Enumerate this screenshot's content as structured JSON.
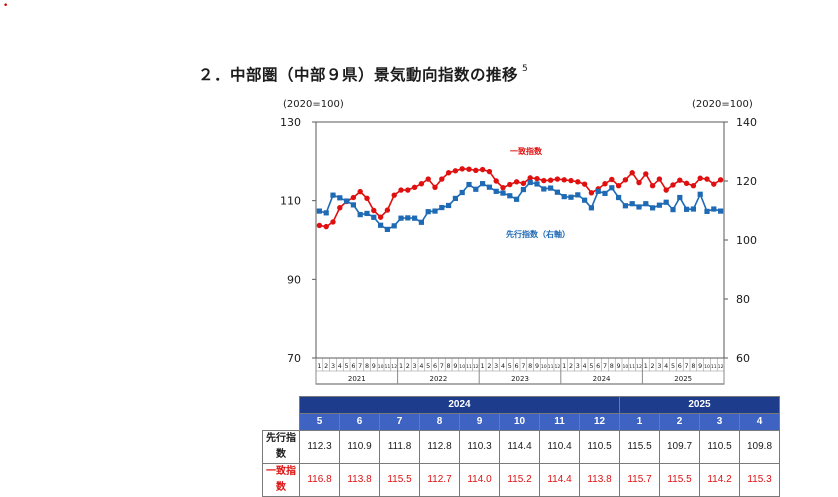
{
  "page": {
    "corner_mark": "•",
    "title": "２．中部圏（中部９県）景気動向指数の推移",
    "title_note": "5"
  },
  "chart_data": {
    "type": "line",
    "left_axis": {
      "unit_label": "(2020=100)",
      "ylim": [
        70,
        130
      ],
      "ticks": [
        "70",
        "90",
        "110",
        "130"
      ]
    },
    "right_axis": {
      "unit_label": "(2020=100)",
      "ylim": [
        60,
        140
      ],
      "ticks": [
        "60",
        "80",
        "100",
        "120",
        "140"
      ]
    },
    "x_months": [
      "1",
      "2",
      "3",
      "4",
      "5",
      "6",
      "7",
      "8",
      "9",
      "10",
      "11",
      "12",
      "1",
      "2",
      "3",
      "4",
      "5",
      "6",
      "7",
      "8",
      "9",
      "10",
      "11",
      "12",
      "1",
      "2",
      "3",
      "4",
      "5",
      "6",
      "7",
      "8",
      "9",
      "10",
      "11",
      "12",
      "1",
      "2",
      "3",
      "4",
      "5",
      "6",
      "7",
      "8",
      "9",
      "10",
      "11",
      "12",
      "1",
      "2",
      "3",
      "4",
      "5",
      "6",
      "7",
      "8",
      "9",
      "10",
      "11",
      "12"
    ],
    "x_years": [
      "2021",
      "2022",
      "2023",
      "2024",
      "2025"
    ],
    "grid": false,
    "series": [
      {
        "name": "一致指数",
        "axis": "left",
        "color": "#e01010",
        "marker": "circle",
        "values": [
          103.7,
          103.4,
          104.6,
          108.2,
          109.8,
          110.8,
          112.3,
          110.6,
          107.5,
          105.8,
          107.6,
          111.4,
          112.7,
          112.7,
          113.4,
          114.3,
          115.5,
          113.4,
          115.5,
          117.1,
          117.6,
          118.1,
          118.0,
          117.7,
          117.9,
          117.4,
          115.0,
          113.3,
          114.1,
          114.8,
          114.4,
          115.8,
          115.6,
          115.1,
          115.2,
          115.5,
          115.3,
          115.1,
          114.8,
          114.2,
          112.0,
          113.0,
          114.3,
          115.4,
          113.8,
          115.3,
          117.1,
          114.6,
          116.8,
          113.8,
          115.5,
          112.7,
          114.0,
          115.2,
          114.4,
          113.8,
          115.7,
          115.5,
          114.2,
          115.3
        ]
      },
      {
        "name": "先行指数（右軸）",
        "axis": "right",
        "color": "#1e6ab4",
        "marker": "square",
        "values": [
          109.8,
          109.2,
          115.2,
          114.3,
          113.2,
          111.9,
          108.6,
          109.0,
          107.7,
          105.0,
          103.6,
          104.8,
          107.4,
          107.5,
          107.4,
          106.0,
          109.6,
          109.8,
          111.0,
          111.7,
          114.1,
          116.1,
          118.8,
          117.2,
          119.1,
          117.9,
          116.5,
          115.9,
          115.0,
          113.8,
          117.1,
          119.5,
          119.0,
          117.3,
          117.6,
          116.2,
          114.7,
          114.5,
          115.3,
          113.5,
          110.9,
          116.5,
          115.8,
          117.7,
          114.4,
          111.6,
          112.3,
          111.2,
          112.3,
          110.9,
          111.8,
          112.8,
          110.3,
          114.4,
          110.4,
          110.5,
          115.5,
          109.7,
          110.5,
          109.8
        ]
      }
    ],
    "annotations": [
      "一致指数",
      "先行指数（右軸）"
    ]
  },
  "table": {
    "years": [
      {
        "label": "2024",
        "span": 8
      },
      {
        "label": "2025",
        "span": 4
      }
    ],
    "months": [
      "5",
      "6",
      "7",
      "8",
      "9",
      "10",
      "11",
      "12",
      "1",
      "2",
      "3",
      "4"
    ],
    "rows": [
      {
        "label": "先行指数",
        "color": "#1a1a1a",
        "values": [
          "112.3",
          "110.9",
          "111.8",
          "112.8",
          "110.3",
          "114.4",
          "110.4",
          "110.5",
          "115.5",
          "109.7",
          "110.5",
          "109.8"
        ]
      },
      {
        "label": "一致指数",
        "color": "#dd1111",
        "values": [
          "116.8",
          "113.8",
          "115.5",
          "112.7",
          "114.0",
          "115.2",
          "114.4",
          "113.8",
          "115.7",
          "115.5",
          "114.2",
          "115.3"
        ]
      }
    ]
  }
}
